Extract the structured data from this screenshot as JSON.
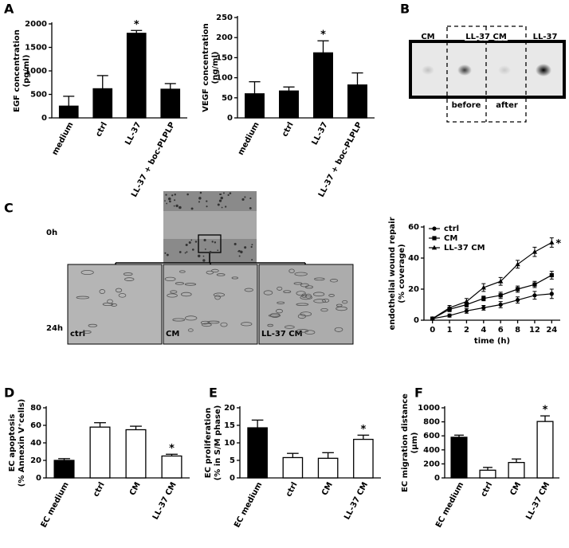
{
  "panel_letters": [
    "A",
    "B",
    "C",
    "D",
    "E",
    "F"
  ],
  "blot": {
    "lanes": [
      "CM",
      "LL-37 CM",
      "LL-37"
    ],
    "sub_labels": [
      "before",
      "after"
    ]
  },
  "micrographs": {
    "times": [
      "0h",
      "24h"
    ],
    "conditions": [
      "ctrl",
      "CM",
      "LL-37 CM"
    ]
  },
  "chart_data": [
    {
      "type": "bar",
      "ylabel": [
        "EGF concentration",
        "(pg/ml)"
      ],
      "categories": [
        "medium",
        "ctrl",
        "LL-37",
        "LL-37 + boc-PLPLP"
      ],
      "values": [
        250,
        620,
        1800,
        610
      ],
      "errors": [
        210,
        280,
        60,
        120
      ],
      "markers": [
        null,
        null,
        "*",
        null
      ],
      "color": "#000000",
      "ylim": [
        0,
        2000
      ],
      "yticks": [
        0,
        500,
        1000,
        1500,
        2000
      ]
    },
    {
      "type": "bar",
      "ylabel": [
        "VEGF concentration",
        "(ng/ml)"
      ],
      "categories": [
        "medium",
        "ctrl",
        "LL-37",
        "LL-37 + boc-PLPLP"
      ],
      "values": [
        60,
        67,
        162,
        82
      ],
      "errors": [
        30,
        10,
        30,
        30
      ],
      "markers": [
        null,
        null,
        "*",
        null
      ],
      "color": "#000000",
      "ylim": [
        0,
        250
      ],
      "yticks": [
        0,
        50,
        100,
        150,
        200,
        250
      ]
    },
    {
      "type": "line",
      "ylabel": [
        "endothelial wound repair",
        "(% coverage)"
      ],
      "xlabel": "time (h)",
      "categories": [
        "0",
        "1",
        "2",
        "4",
        "6",
        "8",
        "12",
        "24"
      ],
      "series": [
        {
          "name": "ctrl",
          "marker": "circle",
          "color": "#000000",
          "values": [
            1,
            3,
            6,
            8,
            10,
            13,
            16,
            17
          ],
          "errors": [
            1,
            1,
            1.5,
            1.5,
            2,
            2,
            2.5,
            3
          ]
        },
        {
          "name": "CM",
          "marker": "square",
          "color": "#000000",
          "values": [
            1,
            7,
            10,
            14,
            16,
            20,
            23,
            29
          ],
          "errors": [
            1,
            1.5,
            1.5,
            1.5,
            2,
            2,
            2,
            2.5
          ]
        },
        {
          "name": "LL-37 CM",
          "marker": "triangle",
          "color": "#000000",
          "values": [
            1,
            8,
            12,
            21,
            25,
            36,
            44,
            50
          ],
          "errors": [
            1,
            1.5,
            2,
            2.5,
            2.5,
            2.5,
            3,
            3
          ],
          "end_marker": "*"
        }
      ],
      "ylim": [
        0,
        60
      ],
      "yticks": [
        0,
        20,
        40,
        60
      ],
      "legend": "top-left"
    },
    {
      "type": "bar",
      "ylabel": [
        "EC apoptosis",
        "(% Annexin V⁺cells)"
      ],
      "categories": [
        "EC medium",
        "ctrl",
        "CM",
        "LL-37 CM"
      ],
      "values": [
        20,
        58,
        55,
        25
      ],
      "errors": [
        2,
        5,
        4,
        2
      ],
      "markers": [
        null,
        null,
        null,
        "*"
      ],
      "colors": [
        "#000000",
        "#ffffff",
        "#ffffff",
        "#ffffff"
      ],
      "ylim": [
        0,
        80
      ],
      "yticks": [
        0,
        20,
        40,
        60,
        80
      ]
    },
    {
      "type": "bar",
      "ylabel": [
        "EC proliferation",
        "(% in S/M phase)"
      ],
      "categories": [
        "EC medium",
        "ctrl",
        "CM",
        "LL-37 CM"
      ],
      "values": [
        14.3,
        5.8,
        5.6,
        11
      ],
      "errors": [
        2.2,
        1.2,
        1.6,
        1.2
      ],
      "markers": [
        null,
        null,
        null,
        "*"
      ],
      "colors": [
        "#000000",
        "#ffffff",
        "#ffffff",
        "#ffffff"
      ],
      "ylim": [
        0,
        20
      ],
      "yticks": [
        0,
        5,
        10,
        15,
        20
      ]
    },
    {
      "type": "bar",
      "ylabel": [
        "EC migration distance",
        "(µm)"
      ],
      "categories": [
        "EC medium",
        "ctrl",
        "CM",
        "LL-37 CM"
      ],
      "values": [
        580,
        110,
        220,
        805
      ],
      "errors": [
        30,
        40,
        50,
        80
      ],
      "markers": [
        null,
        null,
        null,
        "*"
      ],
      "colors": [
        "#000000",
        "#ffffff",
        "#ffffff",
        "#ffffff"
      ],
      "ylim": [
        0,
        1000
      ],
      "yticks": [
        0,
        200,
        400,
        600,
        800,
        1000
      ]
    }
  ]
}
